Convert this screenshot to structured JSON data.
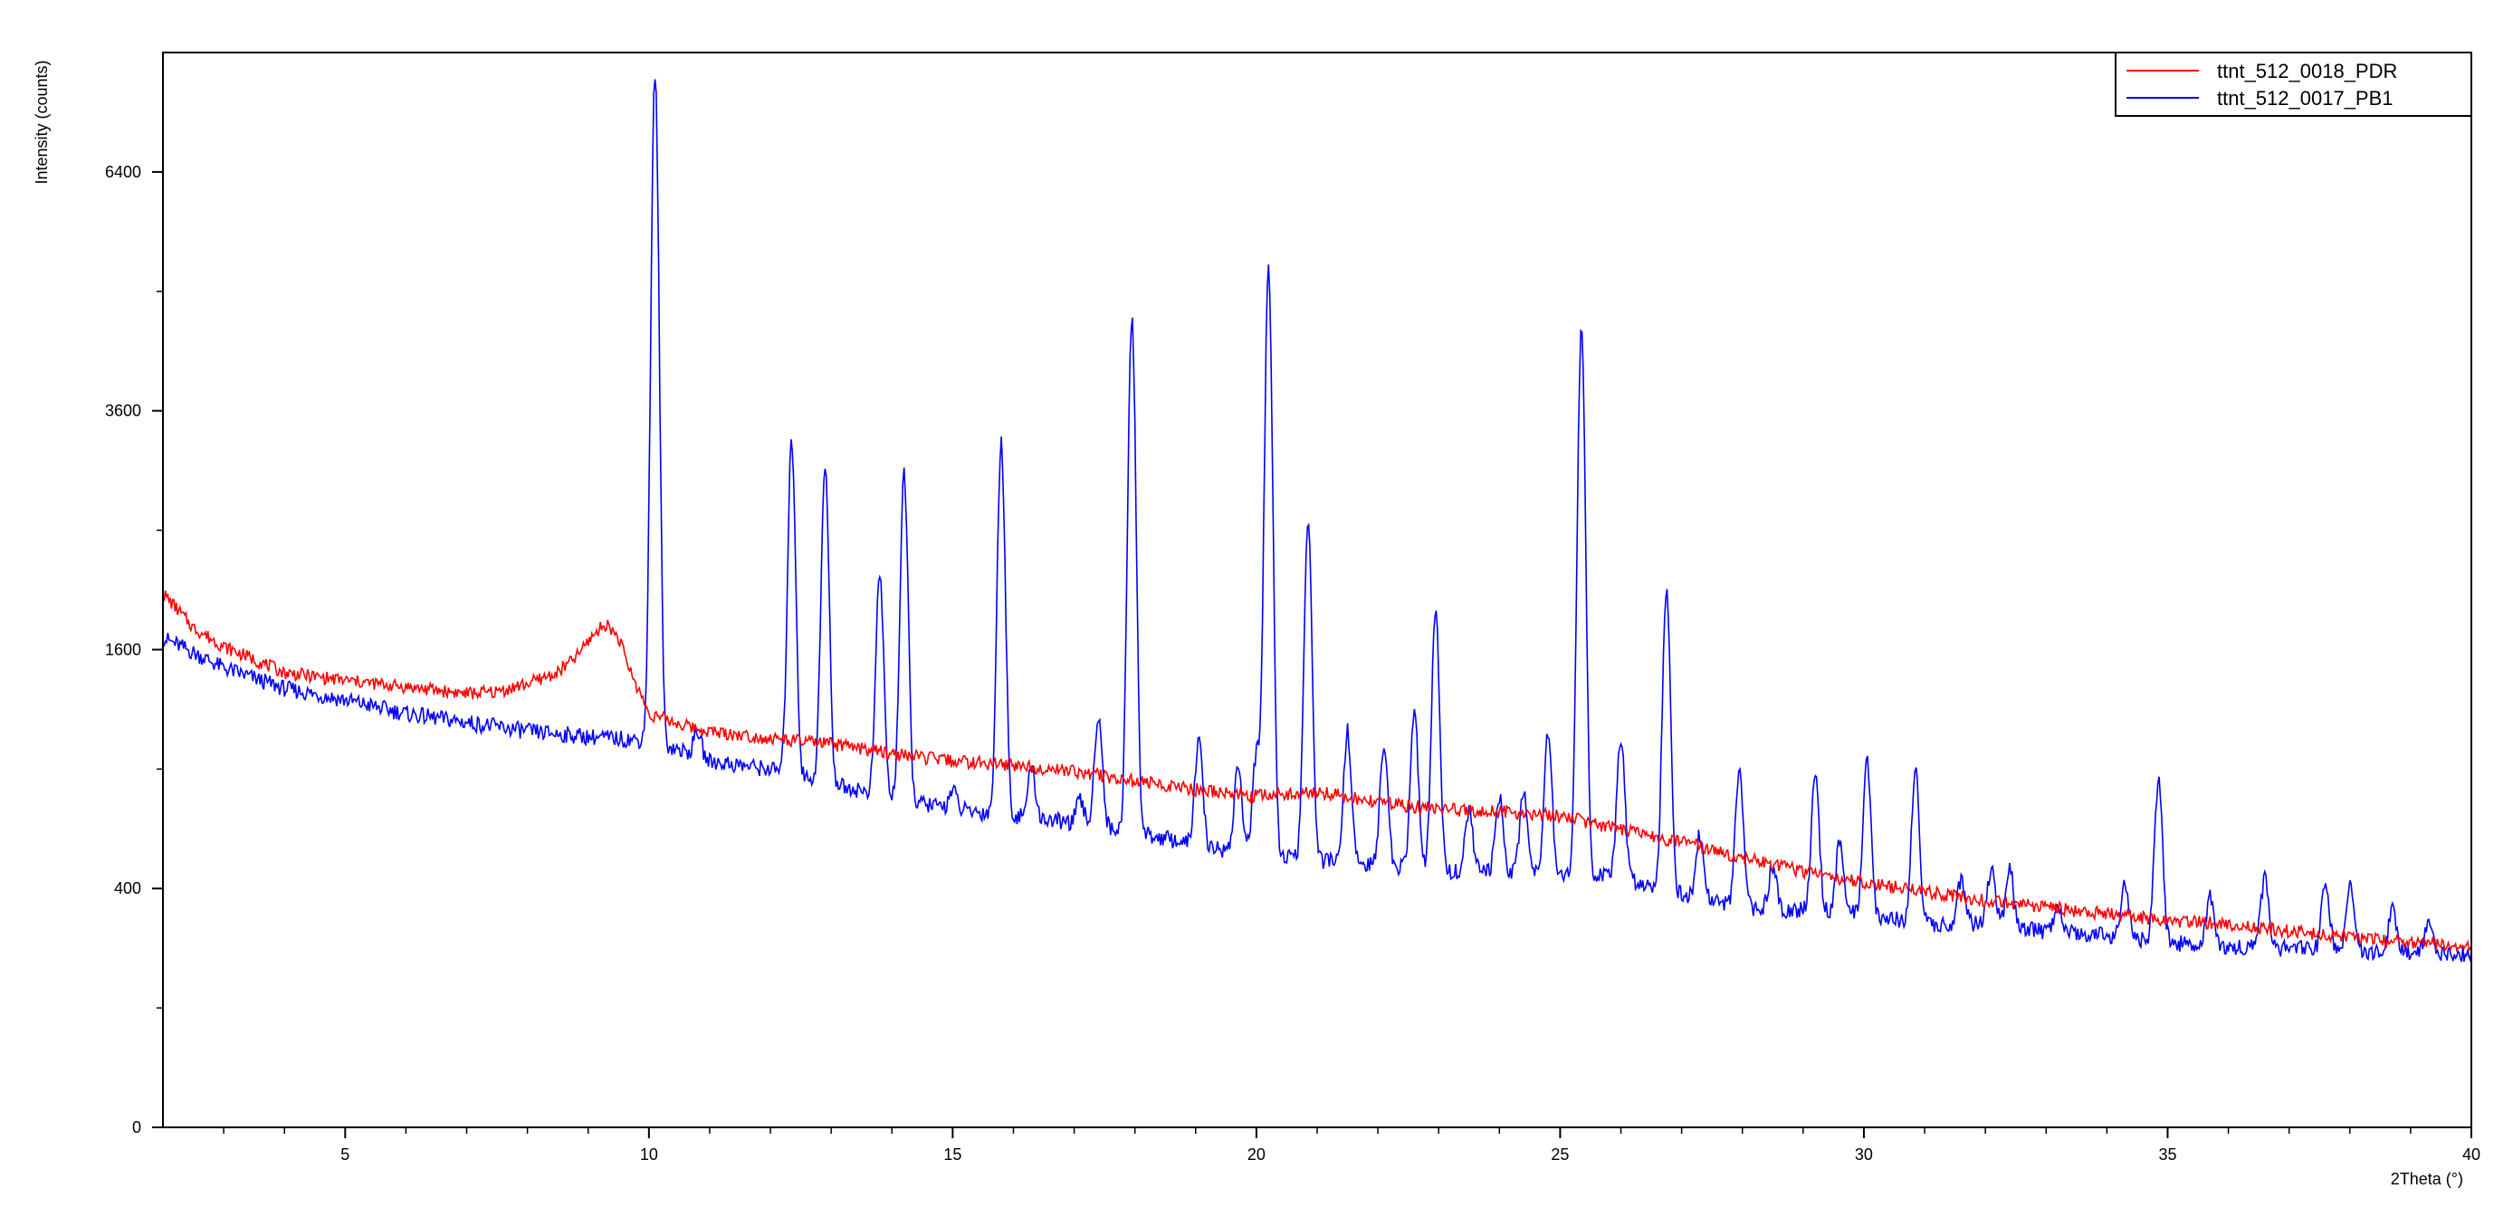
{
  "chart_data": {
    "type": "line",
    "title": "",
    "xlabel": "2Theta (°)",
    "ylabel": "Intensity (counts)",
    "xlim": [
      2,
      40
    ],
    "ylim": [
      0,
      8100
    ],
    "y_scale": "sqrt",
    "grid": false,
    "legend_position": "top-right",
    "x_ticks": [
      5,
      10,
      15,
      20,
      25,
      30,
      35,
      40
    ],
    "x_tick_labels": [
      "5",
      "10",
      "15",
      "20",
      "25",
      "30",
      "35",
      "40"
    ],
    "y_ticks": [
      0,
      400,
      1600,
      3600,
      6400
    ],
    "y_tick_labels": [
      "0",
      "400",
      "1600",
      "3600",
      "6400"
    ],
    "y_minor_ticks": [
      100,
      900,
      2500,
      4900
    ],
    "colors": {
      "PDR": "#ff0000",
      "PB1": "#0000ff"
    },
    "series": [
      {
        "name": "ttnt_512_0018_PDR",
        "color": "#ff0000",
        "points": [
          [
            2.0,
            2000
          ],
          [
            2.5,
            1750
          ],
          [
            3.0,
            1620
          ],
          [
            4.0,
            1450
          ],
          [
            5.0,
            1400
          ],
          [
            6.0,
            1360
          ],
          [
            7.0,
            1320
          ],
          [
            7.5,
            1330
          ],
          [
            8.0,
            1380
          ],
          [
            8.5,
            1450
          ],
          [
            8.8,
            1550
          ],
          [
            9.1,
            1710
          ],
          [
            9.3,
            1780
          ],
          [
            9.5,
            1680
          ],
          [
            9.7,
            1450
          ],
          [
            10.0,
            1200
          ],
          [
            10.5,
            1140
          ],
          [
            11.0,
            1100
          ],
          [
            12.0,
            1060
          ],
          [
            13.0,
            1030
          ],
          [
            14.0,
            980
          ],
          [
            15.0,
            940
          ],
          [
            16.0,
            920
          ],
          [
            17.0,
            890
          ],
          [
            18.0,
            840
          ],
          [
            19.0,
            800
          ],
          [
            20.0,
            770
          ],
          [
            21.0,
            790
          ],
          [
            22.0,
            740
          ],
          [
            23.0,
            710
          ],
          [
            24.0,
            700
          ],
          [
            25.0,
            680
          ],
          [
            26.0,
            620
          ],
          [
            27.0,
            570
          ],
          [
            28.0,
            510
          ],
          [
            29.0,
            460
          ],
          [
            30.0,
            420
          ],
          [
            31.0,
            390
          ],
          [
            32.0,
            360
          ],
          [
            33.0,
            340
          ],
          [
            34.0,
            320
          ],
          [
            35.0,
            300
          ],
          [
            36.0,
            290
          ],
          [
            37.0,
            270
          ],
          [
            38.0,
            255
          ],
          [
            39.0,
            240
          ],
          [
            40.0,
            225
          ]
        ]
      },
      {
        "name": "ttnt_512_0017_PB1",
        "color": "#0000ff",
        "baseline": [
          [
            2.0,
            1680
          ],
          [
            3.0,
            1480
          ],
          [
            4.0,
            1350
          ],
          [
            5.0,
            1280
          ],
          [
            6.0,
            1200
          ],
          [
            7.0,
            1150
          ],
          [
            8.0,
            1100
          ],
          [
            9.0,
            1070
          ],
          [
            9.9,
            1050
          ],
          [
            10.5,
            1000
          ],
          [
            11.0,
            940
          ],
          [
            12.0,
            900
          ],
          [
            13.0,
            830
          ],
          [
            14.0,
            760
          ],
          [
            15.0,
            710
          ],
          [
            16.0,
            680
          ],
          [
            17.0,
            650
          ],
          [
            18.0,
            610
          ],
          [
            19.0,
            560
          ],
          [
            20.0,
            520
          ],
          [
            21.0,
            500
          ],
          [
            22.0,
            480
          ],
          [
            23.0,
            460
          ],
          [
            24.0,
            460
          ],
          [
            25.0,
            450
          ],
          [
            26.0,
            440
          ],
          [
            27.0,
            380
          ],
          [
            28.0,
            340
          ],
          [
            29.0,
            330
          ],
          [
            30.0,
            320
          ],
          [
            31.0,
            290
          ],
          [
            32.0,
            290
          ],
          [
            33.0,
            270
          ],
          [
            34.0,
            260
          ],
          [
            35.0,
            240
          ],
          [
            36.0,
            230
          ],
          [
            37.0,
            225
          ],
          [
            38.0,
            220
          ],
          [
            39.0,
            215
          ],
          [
            40.0,
            210
          ]
        ],
        "peaks": [
          [
            10.1,
            7780
          ],
          [
            10.8,
            1100
          ],
          [
            12.35,
            3300
          ],
          [
            12.9,
            3050
          ],
          [
            13.8,
            2150
          ],
          [
            14.2,
            2980
          ],
          [
            15.0,
            800
          ],
          [
            15.8,
            3300
          ],
          [
            16.3,
            900
          ],
          [
            17.1,
            750
          ],
          [
            17.4,
            1200
          ],
          [
            17.95,
            4600
          ],
          [
            19.05,
            1050
          ],
          [
            19.7,
            920
          ],
          [
            20.0,
            980
          ],
          [
            20.2,
            5200
          ],
          [
            20.85,
            2550
          ],
          [
            21.5,
            1100
          ],
          [
            22.1,
            1040
          ],
          [
            22.6,
            1200
          ],
          [
            22.95,
            1850
          ],
          [
            23.5,
            700
          ],
          [
            24.0,
            760
          ],
          [
            24.4,
            800
          ],
          [
            24.8,
            1100
          ],
          [
            25.35,
            4450
          ],
          [
            26.0,
            1060
          ],
          [
            26.75,
            2050
          ],
          [
            27.3,
            600
          ],
          [
            27.95,
            890
          ],
          [
            28.5,
            480
          ],
          [
            29.2,
            870
          ],
          [
            29.6,
            560
          ],
          [
            30.05,
            940
          ],
          [
            30.85,
            900
          ],
          [
            31.6,
            430
          ],
          [
            32.1,
            470
          ],
          [
            32.4,
            470
          ],
          [
            33.2,
            330
          ],
          [
            34.3,
            410
          ],
          [
            34.85,
            850
          ],
          [
            35.7,
            370
          ],
          [
            36.6,
            440
          ],
          [
            37.6,
            420
          ],
          [
            38.0,
            400
          ],
          [
            38.7,
            330
          ],
          [
            39.3,
            300
          ]
        ]
      }
    ]
  }
}
